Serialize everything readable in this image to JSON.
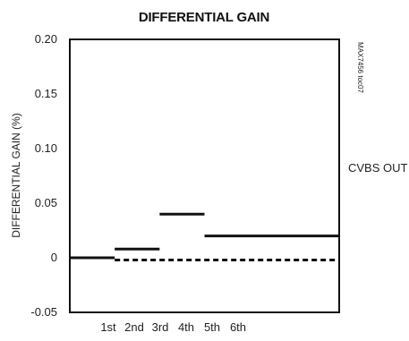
{
  "chart_data": {
    "type": "line",
    "title": "DIFFERENTIAL GAIN",
    "ylabel": "DIFFERENTIAL GAIN (%)",
    "xlabel": "",
    "categories": [
      "1st",
      "2nd",
      "3rd",
      "4th",
      "5th",
      "6th"
    ],
    "y_ticks": [
      "0.20",
      "0.15",
      "0.10",
      "0.05",
      "0",
      "-0.05"
    ],
    "y_tick_values": [
      0.2,
      0.15,
      0.1,
      0.05,
      0,
      -0.05
    ],
    "ylim": [
      -0.05,
      0.2
    ],
    "x_range": [
      0,
      6
    ],
    "grid": false,
    "part_number": "MAX7456 toc07",
    "series": [
      {
        "name": "CVBS OUT",
        "style": "solid",
        "segments": [
          {
            "x0": 0,
            "x1": 1,
            "y": 0
          },
          {
            "x0": 1,
            "x1": 2,
            "y": 0.008
          },
          {
            "x0": 2,
            "x1": 3,
            "y": 0.04
          },
          {
            "x0": 3,
            "x1": 6,
            "y": 0.02
          }
        ]
      },
      {
        "style": "dashed",
        "segments": [
          {
            "x0": 1,
            "x1": 6,
            "y": -0.002
          }
        ]
      }
    ],
    "annotations": [
      {
        "text": "CVBS OUT"
      }
    ]
  }
}
